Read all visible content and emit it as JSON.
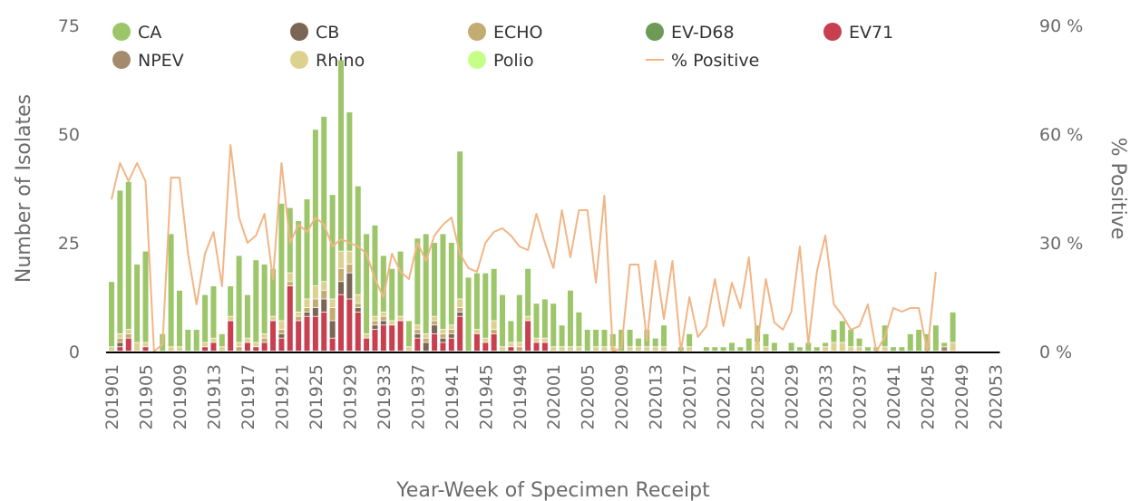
{
  "chart_data": {
    "type": "bar",
    "stacked": true,
    "title": "",
    "xlabel": "Year-Week of Specimen Receipt",
    "ylabel": "Number of Isolates",
    "y2label": "% Positive",
    "ylim": [
      0,
      75
    ],
    "y2lim": [
      0,
      90
    ],
    "yticks": [
      0,
      25,
      50,
      75
    ],
    "y2ticks": [
      "0 %",
      "30 %",
      "60 %",
      "90 %"
    ],
    "grid": false,
    "legend_position": "top",
    "x_tick_labels": [
      "201901",
      "201905",
      "201909",
      "201913",
      "201917",
      "201921",
      "201925",
      "201929",
      "201933",
      "201937",
      "201941",
      "201945",
      "201949",
      "202001",
      "202005",
      "202009",
      "202013",
      "202017",
      "202021",
      "202025",
      "202029",
      "202033",
      "202037",
      "202041",
      "202045",
      "202049",
      "202053"
    ],
    "categories": [
      "201901",
      "201902",
      "201903",
      "201904",
      "201905",
      "201906",
      "201907",
      "201908",
      "201909",
      "201910",
      "201911",
      "201912",
      "201913",
      "201914",
      "201915",
      "201916",
      "201917",
      "201918",
      "201919",
      "201920",
      "201921",
      "201922",
      "201923",
      "201924",
      "201925",
      "201926",
      "201927",
      "201928",
      "201929",
      "201930",
      "201931",
      "201932",
      "201933",
      "201934",
      "201935",
      "201936",
      "201937",
      "201938",
      "201939",
      "201940",
      "201941",
      "201942",
      "201943",
      "201944",
      "201945",
      "201946",
      "201947",
      "201948",
      "201949",
      "201950",
      "201951",
      "201952",
      "202001",
      "202002",
      "202003",
      "202004",
      "202005",
      "202006",
      "202007",
      "202008",
      "202009",
      "202010",
      "202011",
      "202012",
      "202013",
      "202014",
      "202015",
      "202016",
      "202017",
      "202018",
      "202019",
      "202020",
      "202021",
      "202022",
      "202023",
      "202024",
      "202025",
      "202026",
      "202027",
      "202028",
      "202029",
      "202030",
      "202031",
      "202032",
      "202033",
      "202034",
      "202035",
      "202036",
      "202037",
      "202038",
      "202039",
      "202040",
      "202041",
      "202042",
      "202043",
      "202044",
      "202045",
      "202046",
      "202047",
      "202048",
      "202049",
      "202050",
      "202051",
      "202052",
      "202053"
    ],
    "series": [
      {
        "name": "CA",
        "color": "#9dc66a",
        "values": [
          15,
          33,
          34,
          18,
          21,
          0,
          4,
          26,
          13,
          5,
          5,
          11,
          12,
          3,
          7,
          20,
          10,
          19,
          16,
          11,
          27,
          15,
          21,
          23,
          36,
          38,
          24,
          44,
          32,
          25,
          23,
          21,
          13,
          12,
          15,
          6,
          20,
          23,
          17,
          22,
          19,
          34,
          17,
          13,
          15,
          12,
          12,
          5,
          11,
          11,
          8,
          9,
          10,
          5,
          13,
          8,
          5,
          4,
          4,
          3,
          5,
          4,
          2,
          4,
          2,
          5,
          0,
          1,
          3,
          0,
          1,
          1,
          1,
          2,
          1,
          3,
          4,
          3,
          2,
          0,
          2,
          1,
          2,
          1,
          1,
          3,
          5,
          4,
          2,
          1,
          1,
          5,
          1,
          1,
          4,
          5,
          4,
          6,
          1,
          7,
          0,
          0,
          0,
          0,
          0
        ]
      },
      {
        "name": "CB",
        "color": "#7b6655",
        "values": [
          0,
          1,
          0,
          0,
          0,
          0,
          0,
          0,
          0,
          0,
          0,
          0,
          0,
          0,
          0,
          0,
          0,
          0,
          0,
          0,
          1,
          0,
          0,
          1,
          2,
          3,
          4,
          3,
          6,
          1,
          0,
          1,
          1,
          0,
          0,
          0,
          1,
          2,
          2,
          1,
          1,
          1,
          0,
          0,
          0,
          0,
          0,
          0,
          0,
          0,
          0,
          0,
          0,
          0,
          0,
          0,
          0,
          0,
          0,
          0,
          0,
          0,
          0,
          0,
          0,
          0,
          0,
          0,
          0,
          0,
          0,
          0,
          0,
          0,
          0,
          0,
          0,
          0,
          0,
          0,
          0,
          0,
          0,
          0,
          0,
          0,
          0,
          0,
          0,
          0,
          0,
          0,
          0,
          0,
          0,
          0,
          0,
          0,
          0,
          0,
          0,
          0,
          0,
          0,
          0
        ]
      },
      {
        "name": "ECHO",
        "color": "#c3ac72",
        "values": [
          0,
          1,
          1,
          0,
          0,
          0,
          0,
          0,
          0,
          0,
          0,
          0,
          0,
          0,
          0,
          1,
          0,
          0,
          1,
          0,
          1,
          1,
          1,
          1,
          2,
          2,
          3,
          3,
          2,
          1,
          0,
          1,
          1,
          0,
          0,
          0,
          1,
          1,
          1,
          1,
          1,
          1,
          0,
          0,
          0,
          1,
          0,
          0,
          1,
          0,
          0,
          0,
          0,
          0,
          0,
          0,
          0,
          0,
          0,
          0,
          0,
          0,
          0,
          0,
          0,
          0,
          0,
          0,
          0,
          0,
          0,
          0,
          0,
          0,
          0,
          0,
          0,
          0,
          0,
          0,
          0,
          0,
          0,
          0,
          0,
          0,
          0,
          0,
          0,
          0,
          0,
          0,
          0,
          0,
          0,
          0,
          0,
          0,
          0,
          0,
          0,
          0,
          0,
          0,
          0
        ]
      },
      {
        "name": "EV-D68",
        "color": "#6d9a56",
        "values": [
          0,
          0,
          0,
          0,
          0,
          0,
          0,
          0,
          0,
          0,
          0,
          0,
          0,
          0,
          0,
          0,
          0,
          0,
          0,
          0,
          0,
          0,
          0,
          0,
          0,
          0,
          0,
          0,
          0,
          0,
          0,
          0,
          0,
          0,
          0,
          0,
          0,
          0,
          0,
          0,
          0,
          0,
          0,
          0,
          0,
          0,
          0,
          0,
          0,
          0,
          0,
          0,
          0,
          0,
          0,
          0,
          0,
          0,
          0,
          0,
          0,
          0,
          0,
          0,
          0,
          0,
          0,
          0,
          0,
          0,
          0,
          0,
          0,
          0,
          0,
          0,
          0,
          0,
          0,
          0,
          0,
          0,
          0,
          0,
          0,
          0,
          0,
          0,
          0,
          0,
          0,
          0,
          0,
          0,
          0,
          0,
          0,
          0,
          0,
          0,
          0,
          0,
          0,
          0,
          0
        ]
      },
      {
        "name": "EV71",
        "color": "#c8404f",
        "values": [
          0,
          1,
          3,
          0,
          1,
          0,
          0,
          0,
          0,
          0,
          0,
          1,
          2,
          0,
          7,
          0,
          2,
          1,
          2,
          7,
          3,
          15,
          7,
          8,
          8,
          9,
          3,
          13,
          12,
          9,
          3,
          5,
          6,
          6,
          7,
          0,
          3,
          0,
          4,
          2,
          3,
          8,
          0,
          4,
          2,
          4,
          0,
          1,
          0,
          7,
          2,
          2,
          0,
          0,
          0,
          0,
          0,
          0,
          0,
          0,
          0,
          0,
          0,
          0,
          0,
          0,
          0,
          0,
          0,
          0,
          0,
          0,
          0,
          0,
          0,
          0,
          0,
          0,
          0,
          0,
          0,
          0,
          0,
          0,
          0,
          0,
          0,
          0,
          0,
          0,
          0,
          0,
          0,
          0,
          0,
          0,
          0,
          0,
          0,
          0,
          0,
          0,
          0,
          0,
          0
        ]
      },
      {
        "name": "NPEV",
        "color": "#a58b6d",
        "values": [
          0,
          0,
          0,
          0,
          0,
          0,
          0,
          0,
          0,
          0,
          0,
          0,
          0,
          0,
          0,
          0,
          0,
          0,
          0,
          0,
          0,
          0,
          0,
          0,
          0,
          0,
          0,
          0,
          0,
          0,
          0,
          0,
          0,
          0,
          0,
          0,
          0,
          0,
          0,
          0,
          0,
          0,
          0,
          0,
          0,
          0,
          0,
          0,
          0,
          0,
          0,
          0,
          0,
          0,
          0,
          0,
          0,
          0,
          0,
          0,
          0,
          0,
          0,
          0,
          0,
          0,
          0,
          0,
          0,
          0,
          0,
          0,
          0,
          0,
          0,
          0,
          0,
          0,
          0,
          0,
          0,
          0,
          0,
          0,
          0,
          0,
          0,
          0,
          0,
          0,
          0,
          0,
          0,
          0,
          0,
          0,
          0,
          0,
          1,
          0,
          0,
          0,
          0,
          0,
          0
        ]
      },
      {
        "name": "Rhino",
        "color": "#ddd18f",
        "values": [
          1,
          1,
          1,
          2,
          1,
          0,
          0,
          1,
          1,
          0,
          0,
          1,
          1,
          1,
          1,
          1,
          1,
          1,
          1,
          1,
          2,
          2,
          1,
          2,
          3,
          2,
          2,
          4,
          3,
          2,
          1,
          1,
          1,
          1,
          1,
          1,
          1,
          1,
          1,
          1,
          1,
          2,
          0,
          1,
          1,
          2,
          1,
          1,
          1,
          1,
          1,
          1,
          1,
          1,
          1,
          1,
          0,
          1,
          1,
          1,
          0,
          1,
          1,
          1,
          1,
          1,
          0,
          0,
          1,
          0,
          0,
          0,
          0,
          0,
          0,
          0,
          2,
          1,
          0,
          0,
          0,
          0,
          0,
          0,
          1,
          2,
          2,
          1,
          1,
          0,
          0,
          1,
          0,
          0,
          0,
          0,
          0,
          0,
          0,
          2,
          0,
          0,
          0,
          0,
          0
        ]
      },
      {
        "name": "Polio",
        "color": "#c6ff88",
        "values": [
          0,
          0,
          0,
          0,
          0,
          0,
          0,
          0,
          0,
          0,
          0,
          0,
          0,
          0,
          0,
          0,
          0,
          0,
          0,
          0,
          0,
          0,
          0,
          0,
          0,
          0,
          0,
          0,
          0,
          0,
          0,
          0,
          0,
          0,
          0,
          0,
          0,
          0,
          0,
          0,
          0,
          0,
          0,
          0,
          0,
          0,
          0,
          0,
          0,
          0,
          0,
          0,
          0,
          0,
          0,
          0,
          0,
          0,
          0,
          0,
          0,
          0,
          0,
          0,
          0,
          0,
          0,
          0,
          0,
          0,
          0,
          0,
          0,
          0,
          0,
          0,
          0,
          0,
          0,
          0,
          0,
          0,
          0,
          0,
          0,
          0,
          0,
          0,
          0,
          0,
          0,
          0,
          0,
          0,
          0,
          0,
          0,
          0,
          0,
          0,
          0,
          0,
          0,
          0,
          0
        ]
      }
    ],
    "line_series": {
      "name": "% Positive",
      "color": "#f2b585",
      "axis": "right",
      "values": [
        42,
        52,
        47,
        52,
        47,
        0,
        2,
        48,
        48,
        27,
        13,
        27,
        33,
        18,
        57,
        37,
        30,
        32,
        38,
        20,
        52,
        30,
        35,
        33,
        37,
        35,
        29,
        31,
        30,
        29,
        27,
        20,
        15,
        27,
        22,
        20,
        30,
        25,
        32,
        35,
        37,
        27,
        23,
        22,
        30,
        33,
        34,
        32,
        29,
        28,
        38,
        30,
        23,
        39,
        26,
        39,
        39,
        19,
        43,
        0,
        1,
        24,
        24,
        3,
        25,
        9,
        25,
        0,
        15,
        4,
        7,
        20,
        7,
        19,
        12,
        26,
        2,
        20,
        8,
        6,
        11,
        29,
        2,
        22,
        32,
        13,
        10,
        6,
        7,
        13,
        0,
        4,
        12,
        11,
        12,
        12,
        0,
        22,
        null,
        null,
        null,
        null,
        null,
        null,
        null
      ]
    }
  }
}
